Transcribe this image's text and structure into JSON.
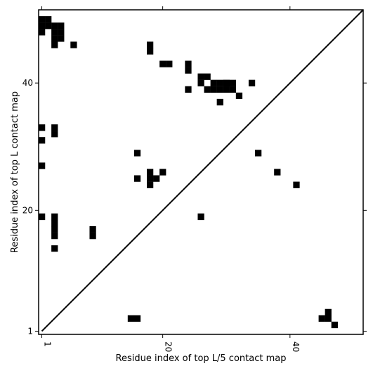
{
  "chart_data": {
    "type": "heatmap",
    "title": "",
    "xlabel": "Residue index of top L/5 contact map",
    "ylabel": "Residue index of top L contact map",
    "xticks": [
      1,
      20,
      40
    ],
    "yticks": [
      1,
      20,
      40
    ],
    "xlim": [
      0.5,
      51.5
    ],
    "ylim": [
      0.5,
      51.5
    ],
    "diagonal": true,
    "contacts_upper_left": [
      [
        1,
        50
      ],
      [
        2,
        50
      ],
      [
        1,
        49
      ],
      [
        2,
        49
      ],
      [
        3,
        49
      ],
      [
        4,
        49
      ],
      [
        1,
        48
      ],
      [
        3,
        48
      ],
      [
        4,
        48
      ],
      [
        3,
        47
      ],
      [
        3,
        46
      ],
      [
        6,
        46
      ],
      [
        18,
        46
      ],
      [
        18,
        45
      ],
      [
        20,
        43
      ],
      [
        21,
        43
      ],
      [
        24,
        43
      ],
      [
        24,
        42
      ],
      [
        26,
        41
      ],
      [
        27,
        41
      ],
      [
        26,
        40
      ],
      [
        28,
        40
      ],
      [
        29,
        40
      ],
      [
        30,
        40
      ],
      [
        31,
        40
      ],
      [
        24,
        39
      ],
      [
        31,
        39
      ],
      [
        30,
        39
      ],
      [
        32,
        38
      ],
      [
        29,
        37
      ],
      [
        1,
        33
      ],
      [
        3,
        33
      ],
      [
        3,
        32
      ],
      [
        1,
        31
      ],
      [
        16,
        29
      ],
      [
        18,
        26
      ],
      [
        20,
        26
      ],
      [
        18,
        25
      ],
      [
        19,
        25
      ],
      [
        16,
        25
      ],
      [
        18,
        24
      ],
      [
        1,
        27
      ],
      [
        1,
        19
      ],
      [
        3,
        19
      ],
      [
        3,
        18
      ],
      [
        3,
        17
      ],
      [
        3,
        16
      ],
      [
        9,
        17
      ],
      [
        9,
        16
      ],
      [
        3,
        14
      ],
      [
        26,
        19
      ],
      [
        4,
        47
      ],
      [
        27,
        39
      ],
      [
        29,
        39
      ],
      [
        28,
        39
      ],
      [
        30,
        40
      ]
    ],
    "contacts_lower_right": [
      [
        34,
        40
      ],
      [
        35,
        29
      ],
      [
        38,
        26
      ],
      [
        41,
        24
      ],
      [
        15,
        3
      ],
      [
        16,
        3
      ],
      [
        45,
        3
      ],
      [
        46,
        3
      ],
      [
        46,
        4
      ],
      [
        47,
        2
      ]
    ]
  }
}
